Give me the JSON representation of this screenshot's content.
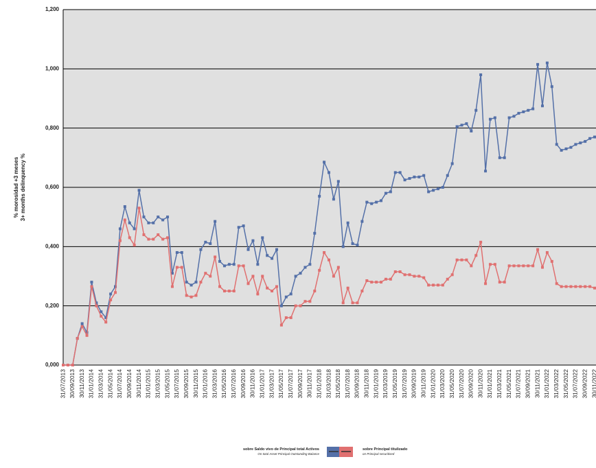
{
  "chart_data": {
    "type": "line",
    "y_label": [
      "% morosidad +3 meses",
      "3+ months delinquency %"
    ],
    "categories": [
      "31/07/2013",
      null,
      "30/09/2013",
      null,
      "30/11/2013",
      null,
      "31/01/2014",
      null,
      "31/03/2014",
      null,
      "31/05/2014",
      null,
      "31/07/2014",
      null,
      "30/09/2014",
      null,
      "30/11/2014",
      null,
      "31/01/2015",
      null,
      "31/03/2015",
      null,
      "31/05/2015",
      null,
      "31/07/2015",
      null,
      "30/09/2015",
      null,
      "30/11/2015",
      null,
      "31/01/2016",
      null,
      "31/03/2016",
      null,
      "31/05/2016",
      null,
      "31/07/2016",
      null,
      "30/09/2016",
      null,
      "30/11/2016",
      null,
      "31/01/2017",
      null,
      "31/03/2017",
      null,
      "31/05/2017",
      null,
      "31/07/2017",
      null,
      "30/09/2017",
      null,
      "30/11/2017",
      null,
      "31/01/2018",
      null,
      "31/03/2018",
      null,
      "31/05/2018",
      null,
      "31/07/2018",
      null,
      "30/09/2018",
      null,
      "30/11/2018",
      null,
      "31/01/2019",
      null,
      "31/03/2019",
      null,
      "31/05/2019",
      null,
      "31/07/2019",
      null,
      "30/09/2019",
      null,
      "30/11/2019",
      null,
      "31/01/2020",
      null,
      "31/03/2020",
      null,
      "31/05/2020",
      null,
      "31/07/2020",
      null,
      "30/09/2020",
      null,
      "30/11/2020",
      null,
      "31/01/2021",
      null,
      "31/03/2021",
      null,
      "31/05/2021",
      null,
      "31/07/2021",
      null,
      "30/09/2021",
      null,
      "30/11/2021",
      null,
      "31/01/2022",
      null,
      "31/03/2022",
      null,
      "31/05/2022",
      null,
      "31/07/2022",
      null,
      "30/09/2022",
      null,
      "30/11/2022"
    ],
    "series": [
      {
        "name": [
          "sobre Saldo vivo de Principal total Activos",
          "On total Asset Principal Outstanding Balance"
        ],
        "color": "#5470a8",
        "values": [
          0,
          0,
          0,
          0.09,
          0.14,
          0.11,
          0.28,
          0.21,
          0.18,
          0.16,
          0.24,
          0.265,
          0.46,
          0.535,
          0.48,
          0.46,
          0.59,
          0.5,
          0.48,
          0.48,
          0.5,
          0.49,
          0.5,
          0.31,
          0.38,
          0.38,
          0.28,
          0.27,
          0.28,
          0.39,
          0.415,
          0.41,
          0.485,
          0.35,
          0.335,
          0.34,
          0.34,
          0.465,
          0.47,
          0.39,
          0.42,
          0.34,
          0.43,
          0.37,
          0.36,
          0.39,
          0.2,
          0.23,
          0.24,
          0.3,
          0.31,
          0.33,
          0.34,
          0.445,
          0.57,
          0.685,
          0.65,
          0.56,
          0.62,
          0.4,
          0.48,
          0.41,
          0.405,
          0.485,
          0.55,
          0.545,
          0.55,
          0.555,
          0.58,
          0.585,
          0.65,
          0.65,
          0.625,
          0.63,
          0.635,
          0.635,
          0.64,
          0.585,
          0.59,
          0.595,
          0.6,
          0.64,
          0.68,
          0.805,
          0.81,
          0.815,
          0.79,
          0.86,
          0.98,
          0.655,
          0.83,
          0.835,
          0.7,
          0.7,
          0.835,
          0.84,
          0.85,
          0.855,
          0.86,
          0.865,
          1.015,
          0.875,
          1.02,
          0.94,
          0.745,
          0.725,
          0.73,
          0.735,
          0.745,
          0.75,
          0.755,
          0.765,
          0.77
        ]
      },
      {
        "name": [
          "sobre Principal titulizado",
          "on Principal securitised"
        ],
        "color": "#e07070",
        "values": [
          0,
          0,
          0,
          0.09,
          0.13,
          0.1,
          0.265,
          0.2,
          0.165,
          0.145,
          0.22,
          0.245,
          0.42,
          0.49,
          0.43,
          0.405,
          0.53,
          0.44,
          0.425,
          0.425,
          0.44,
          0.425,
          0.43,
          0.265,
          0.33,
          0.33,
          0.235,
          0.23,
          0.235,
          0.28,
          0.31,
          0.3,
          0.365,
          0.265,
          0.25,
          0.25,
          0.25,
          0.335,
          0.335,
          0.275,
          0.3,
          0.24,
          0.3,
          0.26,
          0.25,
          0.265,
          0.135,
          0.16,
          0.16,
          0.2,
          0.2,
          0.215,
          0.215,
          0.25,
          0.32,
          0.38,
          0.355,
          0.3,
          0.33,
          0.21,
          0.26,
          0.21,
          0.21,
          0.25,
          0.285,
          0.28,
          0.28,
          0.28,
          0.29,
          0.29,
          0.315,
          0.315,
          0.305,
          0.305,
          0.3,
          0.3,
          0.295,
          0.27,
          0.27,
          0.27,
          0.27,
          0.29,
          0.305,
          0.355,
          0.355,
          0.355,
          0.335,
          0.37,
          0.415,
          0.275,
          0.34,
          0.34,
          0.28,
          0.28,
          0.335,
          0.335,
          0.335,
          0.335,
          0.335,
          0.335,
          0.39,
          0.33,
          0.38,
          0.35,
          0.275,
          0.265,
          0.265,
          0.265,
          0.265,
          0.265,
          0.265,
          0.265,
          0.26
        ]
      }
    ],
    "ylim": [
      0,
      1.2
    ],
    "yticks": [
      {
        "value": 0,
        "label": "0,000"
      },
      {
        "value": 0.2,
        "label": "0,200"
      },
      {
        "value": 0.4,
        "label": "0,400"
      },
      {
        "value": 0.6,
        "label": "0,600"
      },
      {
        "value": 0.8,
        "label": "0,800"
      },
      {
        "value": 1,
        "label": "1,000"
      },
      {
        "value": 1.2,
        "label": "1,200"
      }
    ],
    "grid": true
  }
}
